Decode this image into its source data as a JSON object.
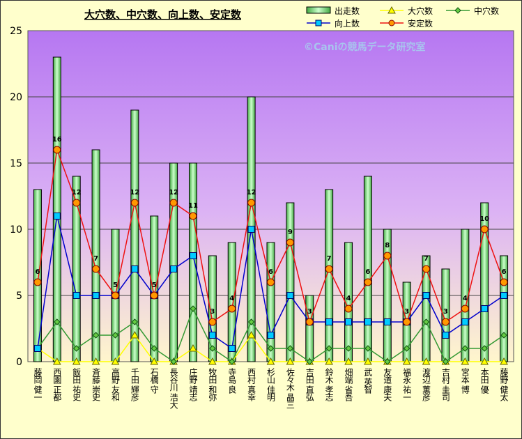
{
  "chart_data": {
    "type": "bar",
    "title": "大穴数、中穴数、向上数、安定数",
    "watermark": "©Caniの競馬データ研究室",
    "categories": [
      "藤岡 健一",
      "西園 正都",
      "飯田 祐史",
      "斉藤 崇史",
      "高野 友和",
      "千田 輝彦",
      "石橋 守",
      "長谷川 浩大",
      "庄野 靖志",
      "牧田 和弥",
      "寺島 良",
      "西村 真幸",
      "杉山 佳明",
      "佐々木 晶三",
      "吉田 直弘",
      "鈴木 孝志",
      "畑端 省吾",
      "武 英智",
      "友道 康夫",
      "福永 祐一",
      "渡辺 薫彦",
      "吉村 圭司",
      "宮本 博",
      "本田 優",
      "藤野 健太"
    ],
    "ylim": [
      0,
      25
    ],
    "yticks": [
      0,
      5,
      10,
      15,
      20,
      25
    ],
    "grid": true,
    "legend_position": "top-right",
    "series": [
      {
        "name": "出走数",
        "type": "bar",
        "color": "#99ff99",
        "values": [
          13,
          23,
          14,
          16,
          10,
          19,
          11,
          15,
          15,
          8,
          9,
          20,
          9,
          12,
          5,
          13,
          9,
          14,
          10,
          6,
          8,
          7,
          10,
          12,
          8
        ]
      },
      {
        "name": "大穴数",
        "type": "line",
        "color": "#ffff00",
        "values": [
          1,
          0,
          0,
          0,
          0,
          2,
          0,
          0,
          1,
          0,
          0,
          2,
          0,
          0,
          0,
          0,
          0,
          0,
          0,
          0,
          0,
          0,
          0,
          0,
          0
        ]
      },
      {
        "name": "中穴数",
        "type": "line",
        "color": "#339933",
        "values": [
          1,
          3,
          1,
          2,
          2,
          3,
          1,
          0,
          4,
          1,
          0,
          3,
          1,
          1,
          0,
          1,
          1,
          1,
          0,
          1,
          3,
          0,
          1,
          1,
          2
        ]
      },
      {
        "name": "向上数",
        "type": "line",
        "color": "#0000cc",
        "values": [
          1,
          11,
          5,
          5,
          5,
          7,
          5,
          7,
          8,
          2,
          1,
          10,
          2,
          5,
          3,
          3,
          3,
          3,
          3,
          3,
          5,
          2,
          3,
          4,
          5
        ]
      },
      {
        "name": "安定数",
        "type": "line",
        "color": "#ee1111",
        "values": [
          6,
          16,
          12,
          7,
          5,
          12,
          5,
          12,
          11,
          3,
          4,
          12,
          6,
          9,
          3,
          7,
          4,
          6,
          8,
          3,
          7,
          3,
          4,
          10,
          6
        ]
      }
    ]
  }
}
